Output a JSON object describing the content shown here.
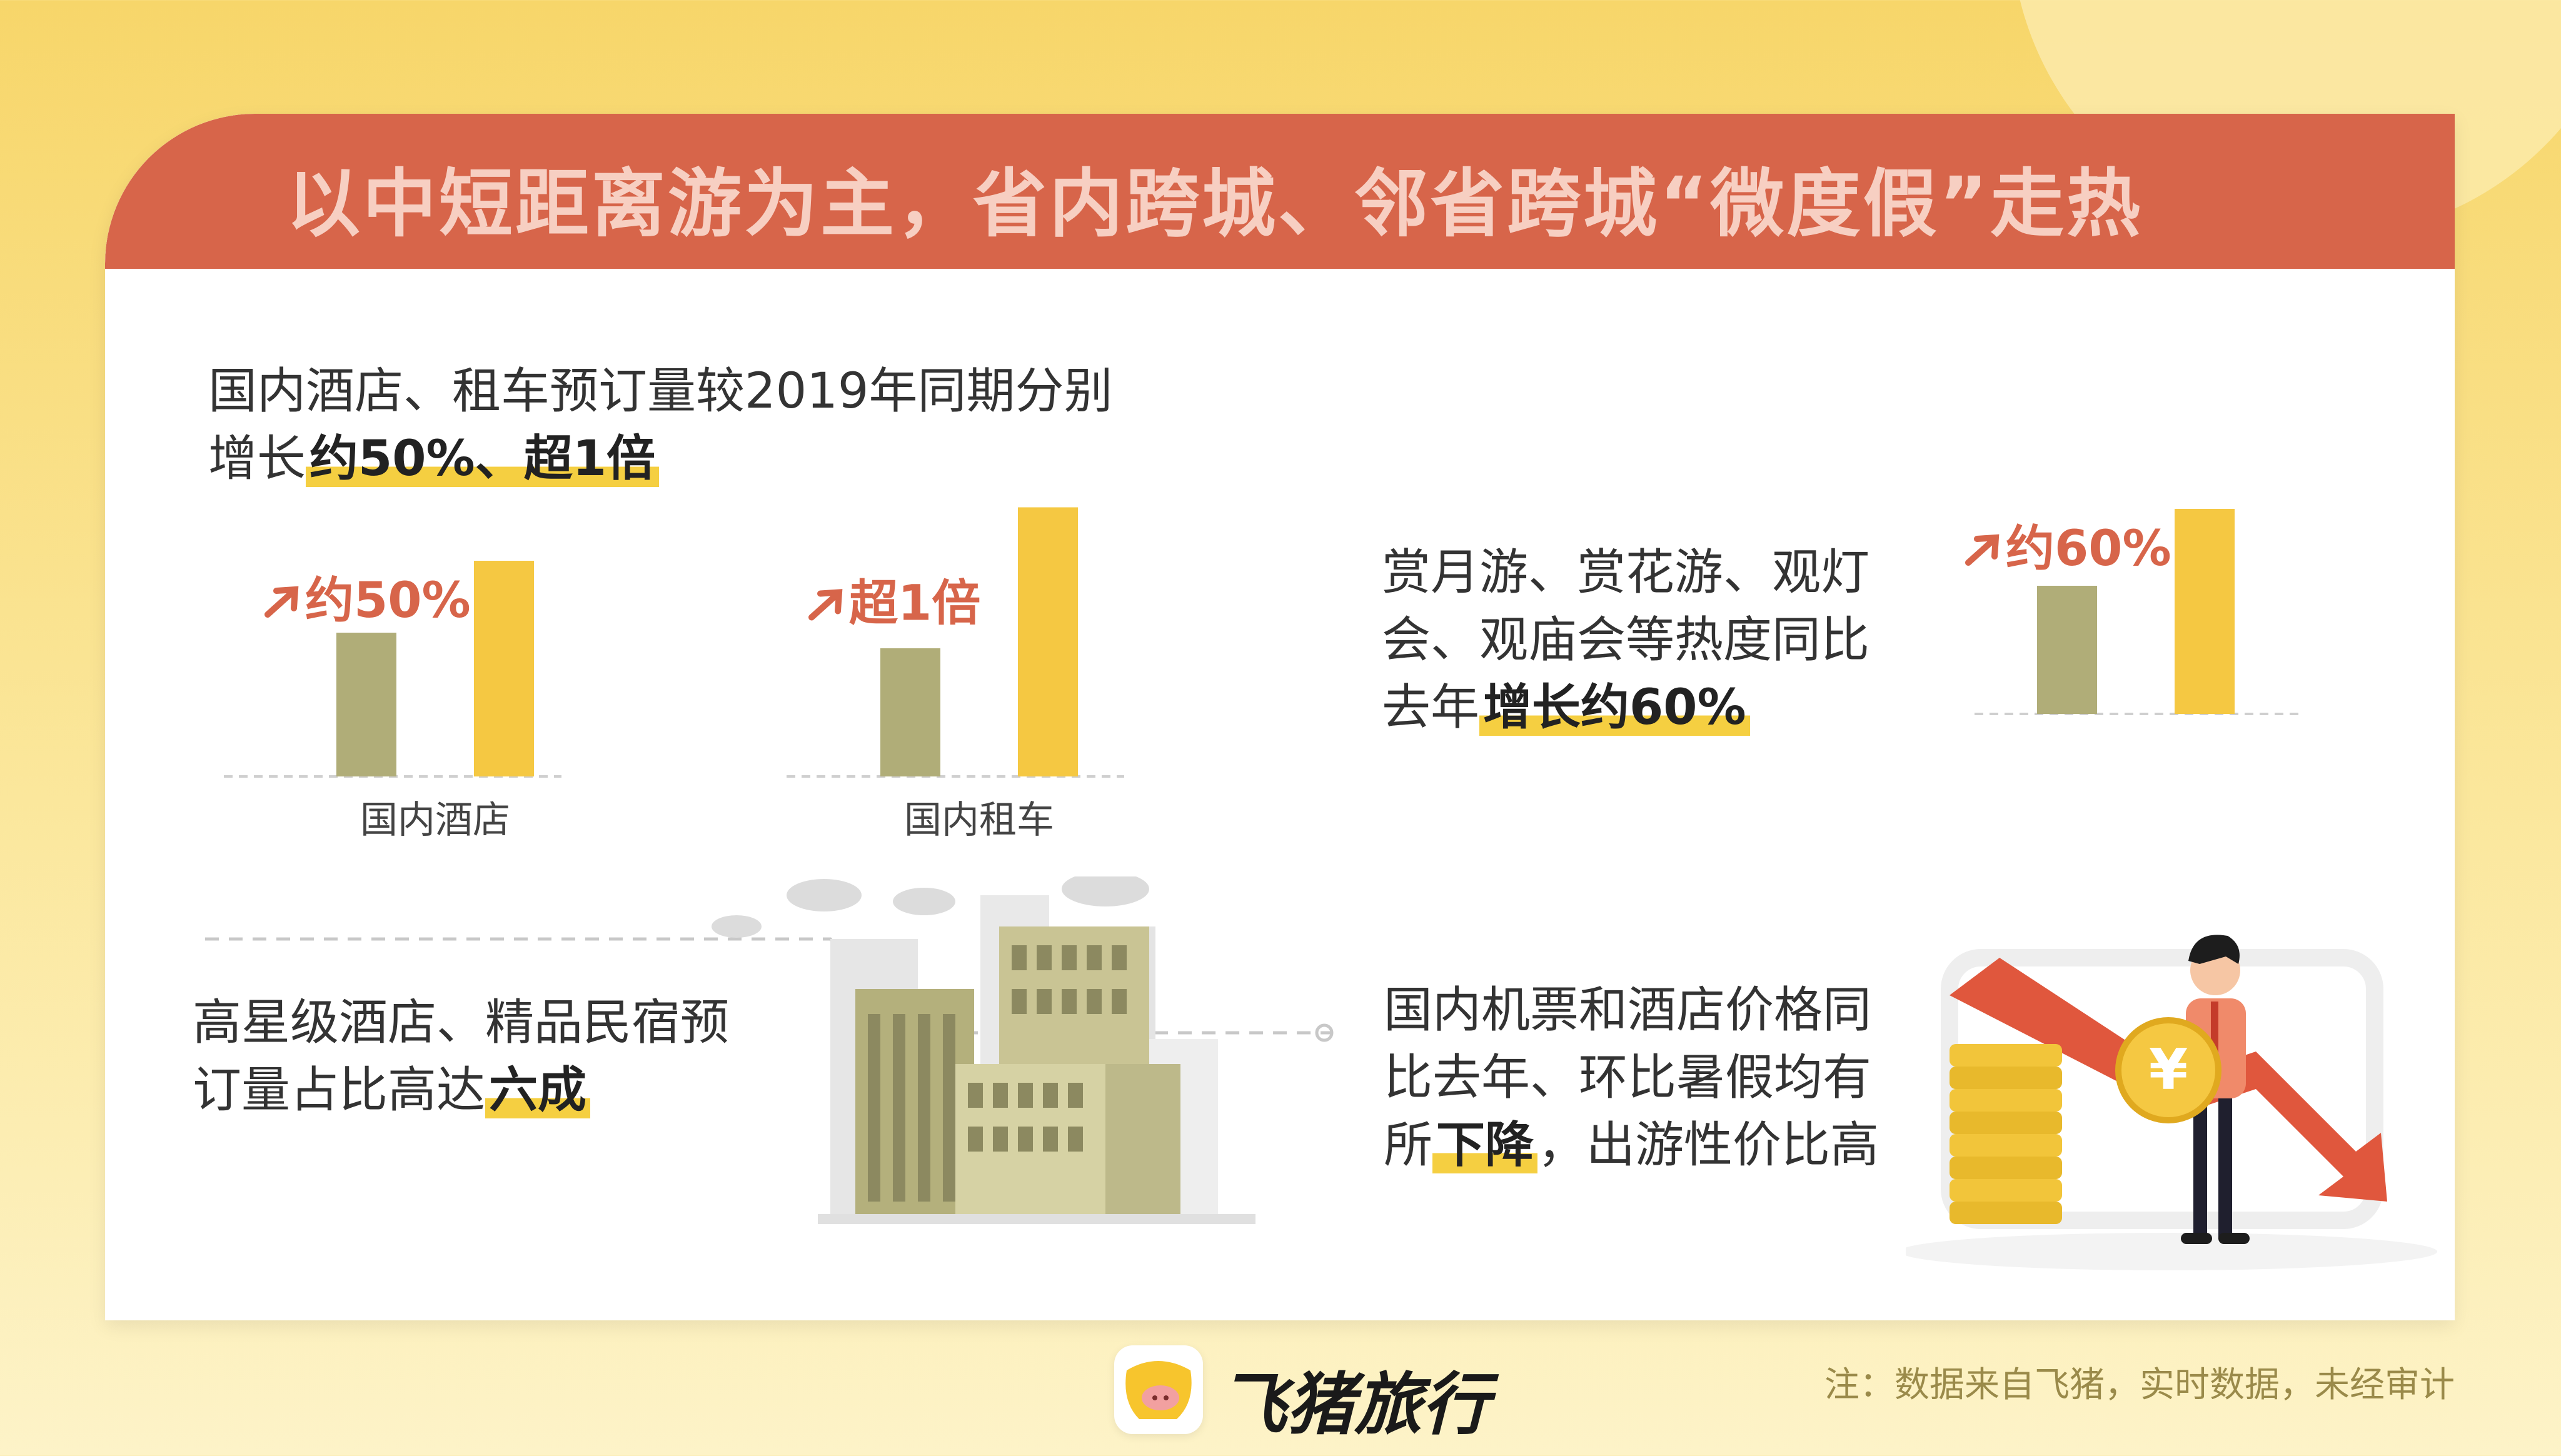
{
  "title": "以中短距离游为主，省内跨城、邻省跨城“微度假”走热",
  "section1": {
    "line1": "国内酒店、租车预订量较2019年同期分别",
    "line2_prefix": "增长",
    "line2_highlight": "约50%、超1倍"
  },
  "section2": {
    "line1": "赏月游、赏花游、观灯",
    "line2": "会、观庙会等热度同比",
    "line3_prefix": "去年",
    "line3_highlight": "增长约60%"
  },
  "section3": {
    "line1": "高星级酒店、精品民宿预",
    "line2_prefix": "订量占比高达",
    "line2_highlight": "六成"
  },
  "section4": {
    "line1": "国内机票和酒店价格同",
    "line2": "比去年、环比暑假均有",
    "line3_prefix": "所",
    "line3_highlight": "下降",
    "line3_suffix": "，出游性价比高"
  },
  "footer": {
    "brand": "飞猪旅行",
    "note": "注：数据来自飞猪，实时数据，未经审计"
  },
  "colors": {
    "banner": "#d7654a",
    "bar_baseline": "#b0ad78",
    "bar_current": "#f5c842",
    "accent": "#d7654a",
    "highlight": "#f5cf41"
  },
  "icons": [
    "trend-up-arrow-icon",
    "city-buildings-illustration",
    "coin-stack-icon",
    "yuan-coin-icon",
    "down-arrow-icon",
    "businessman-illustration",
    "pig-logo-icon"
  ],
  "chart_data": [
    {
      "type": "bar",
      "categories": [
        "国内酒店"
      ],
      "series": [
        {
          "values": [
            1.0
          ]
        },
        {
          "values": [
            1.5
          ]
        }
      ],
      "annotation": "约50%"
    },
    {
      "type": "bar",
      "categories": [
        "国内租车"
      ],
      "series": [
        {
          "values": [
            1.0
          ]
        },
        {
          "values": [
            2.1
          ]
        }
      ],
      "annotation": "超1倍"
    },
    {
      "type": "bar",
      "categories": [
        ""
      ],
      "series": [
        {
          "values": [
            1.0
          ]
        },
        {
          "values": [
            1.6
          ]
        }
      ],
      "annotation": "约60%"
    }
  ]
}
